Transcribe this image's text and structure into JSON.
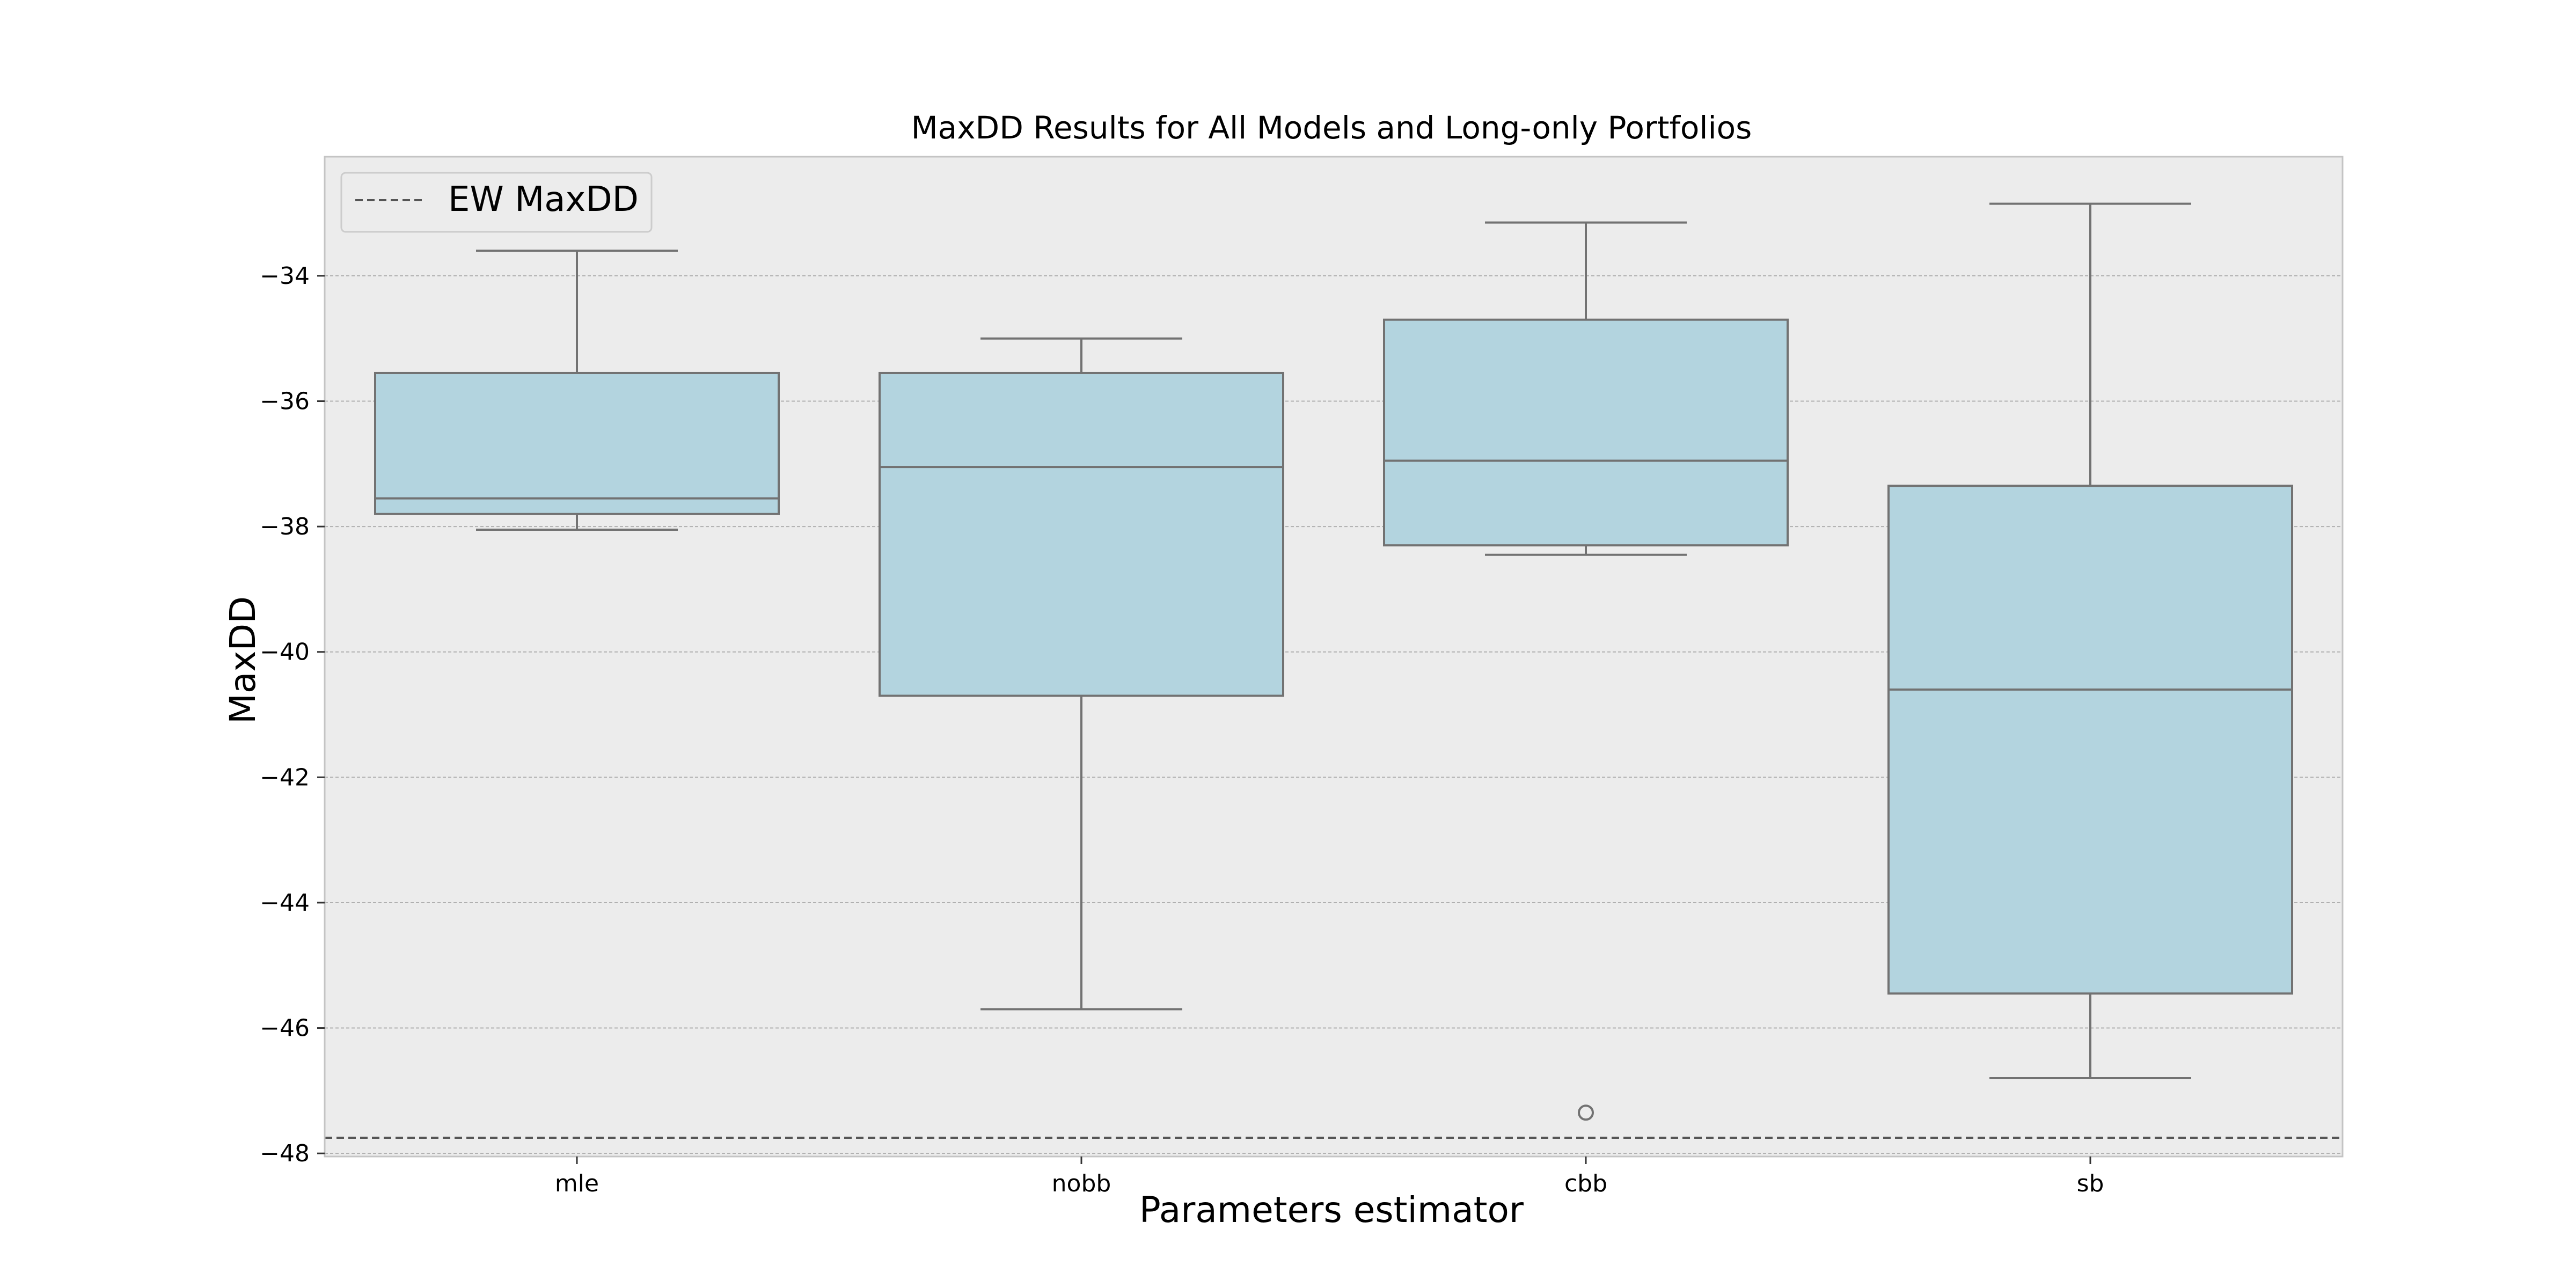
{
  "chart_data": {
    "type": "box",
    "title": "MaxDD Results for All Models and Long-only Portfolios",
    "xlabel": "Parameters estimator",
    "ylabel": "MaxDD",
    "ylim": [
      -48.05,
      -32.1
    ],
    "yticks": [
      -34,
      -36,
      -38,
      -40,
      -42,
      -44,
      -46,
      -48
    ],
    "ytick_labels": [
      "−34",
      "−36",
      "−38",
      "−40",
      "−42",
      "−44",
      "−46",
      "−48"
    ],
    "categories": [
      "mle",
      "nobb",
      "cbb",
      "sb"
    ],
    "boxes": [
      {
        "category": "mle",
        "whisker_low": -38.05,
        "q1": -37.8,
        "median": -37.55,
        "q3": -35.55,
        "whisker_high": -33.6,
        "outliers": []
      },
      {
        "category": "nobb",
        "whisker_low": -45.7,
        "q1": -40.7,
        "median": -37.05,
        "q3": -35.55,
        "whisker_high": -35.0,
        "outliers": []
      },
      {
        "category": "cbb",
        "whisker_low": -38.45,
        "q1": -38.3,
        "median": -36.95,
        "q3": -34.7,
        "whisker_high": -33.15,
        "outliers": [
          -47.35
        ]
      },
      {
        "category": "sb",
        "whisker_low": -46.8,
        "q1": -45.45,
        "median": -40.6,
        "q3": -37.35,
        "whisker_high": -32.85,
        "outliers": []
      }
    ],
    "reference_lines": [
      {
        "name": "EW MaxDD",
        "value": -47.75,
        "style": "dashed"
      }
    ],
    "legend": {
      "entries": [
        "EW MaxDD"
      ],
      "placement": "top-left"
    },
    "grid": true,
    "colors": {
      "box_fill": "#b3d4df",
      "box_edge": "#727272",
      "axes_bg": "#ececec",
      "grid": "#b0b0b0",
      "reference_line": "#555555"
    }
  }
}
